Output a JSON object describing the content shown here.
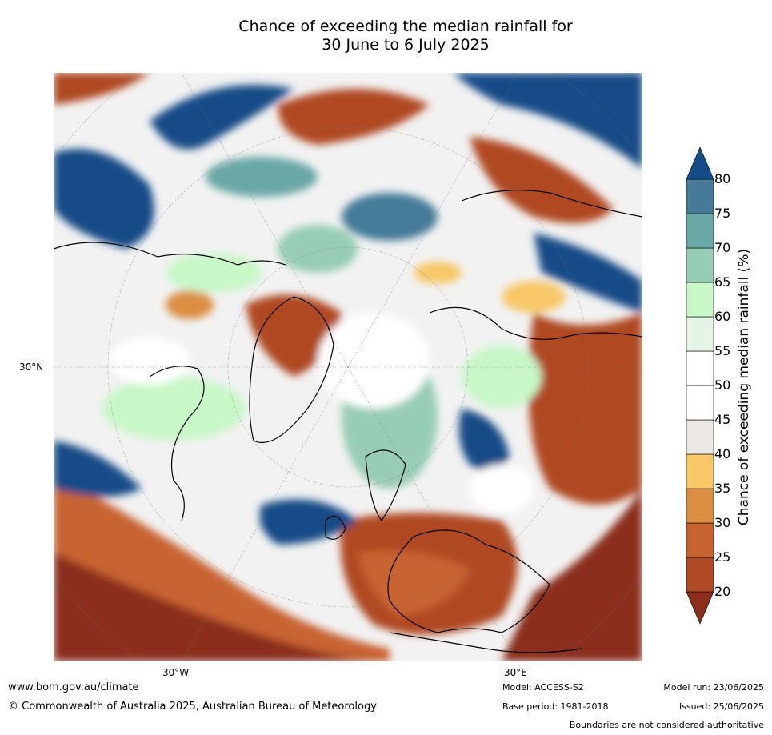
{
  "title_line1": "Chance of exceeding the median rainfall for",
  "title_line2": "30 June to 6 July 2025",
  "map": {
    "projection": "north-polar-stereographic",
    "lat_label": "30°N",
    "lon_labels": [
      "30°W",
      "30°E"
    ],
    "colors": {
      "c20": "#8b2f1c",
      "c25": "#b04a24",
      "c30": "#c86332",
      "c35": "#dc8f43",
      "c40": "#f8c868",
      "c45": "#ebe7e2",
      "c50": "#ffffff",
      "c55": "#ffffff",
      "c60": "#e6f4e6",
      "c65": "#c8f7c8",
      "c70": "#96cdb4",
      "c75": "#6aa7a7",
      "c80": "#457b99",
      "c80plus": "#134c87"
    }
  },
  "colorbar": {
    "label": "Chance of exceeding median rainfall (%)",
    "ticks": [
      "20",
      "25",
      "30",
      "35",
      "40",
      "45",
      "50",
      "55",
      "60",
      "65",
      "70",
      "75",
      "80"
    ],
    "colors": [
      "#8b2f1c",
      "#b04a24",
      "#c86332",
      "#dc8f43",
      "#f8c868",
      "#ebe7e2",
      "#ffffff",
      "#ffffff",
      "#e6f4e6",
      "#c8f7c8",
      "#96cdb4",
      "#6aa7a7",
      "#457b99",
      "#134c87"
    ]
  },
  "footer": {
    "website": "www.bom.gov.au/climate",
    "copyright": "© Commonwealth of Australia 2025, Australian Bureau of Meteorology",
    "model": "Model: ACCESS-S2",
    "base_period": "Base period: 1981-2018",
    "model_run": "Model run: 23/06/2025",
    "issued": "Issued: 25/06/2025",
    "disclaimer": "Boundaries are not considered authoritative"
  }
}
